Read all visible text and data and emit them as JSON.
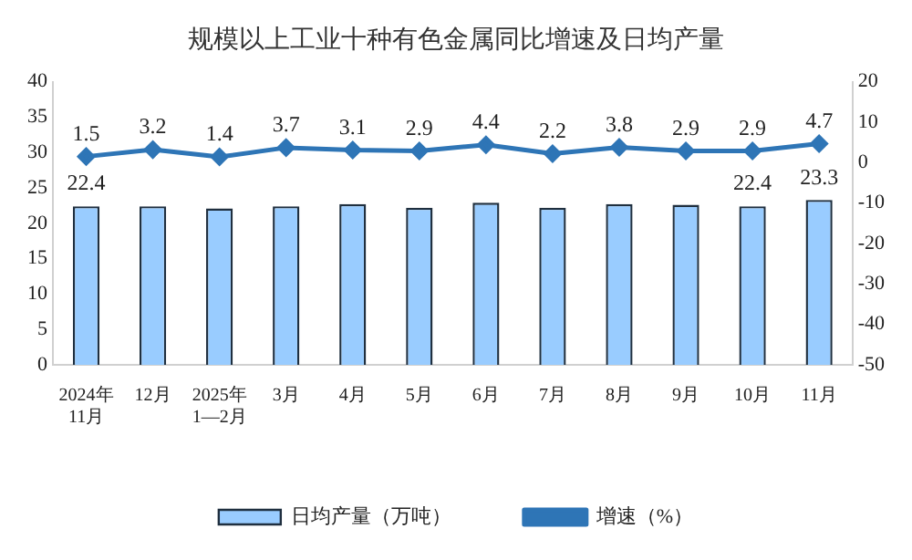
{
  "chart_data": {
    "type": "bar",
    "title": "规模以上工业十种有色金属同比增速及日均产量",
    "categories": [
      "2024年\n11月",
      "12月",
      "2025年\n1—2月",
      "3月",
      "4月",
      "5月",
      "6月",
      "7月",
      "8月",
      "9月",
      "10月",
      "11月"
    ],
    "series": [
      {
        "name": "日均产量（万吨）",
        "color": "#99ccff",
        "values": [
          22.4,
          22.4,
          22.1,
          22.4,
          22.7,
          22.2,
          22.9,
          22.2,
          22.7,
          22.6,
          22.4,
          23.3
        ],
        "value_labels": [
          "22.4",
          null,
          null,
          null,
          null,
          null,
          null,
          null,
          null,
          null,
          "22.4",
          "23.3"
        ]
      },
      {
        "name": "增速（%）",
        "type": "line",
        "axis": "y2",
        "color": "#2e75b6",
        "values": [
          1.5,
          3.2,
          1.4,
          3.7,
          3.1,
          2.9,
          4.4,
          2.2,
          3.8,
          2.9,
          2.9,
          4.7
        ],
        "value_labels": [
          "1.5",
          "3.2",
          "1.4",
          "3.7",
          "3.1",
          "2.9",
          "4.4",
          "2.2",
          "3.8",
          "2.9",
          "2.9",
          "4.7"
        ]
      }
    ],
    "ylim": [
      0,
      40
    ],
    "yticks": [
      0,
      5,
      10,
      15,
      20,
      25,
      30,
      35,
      40
    ],
    "y2lim": [
      -50,
      20
    ],
    "y2ticks": [
      -50,
      -40,
      -30,
      -20,
      -10,
      0,
      10,
      20
    ],
    "legend": "bottom",
    "marker": "diamond",
    "grid": false
  }
}
